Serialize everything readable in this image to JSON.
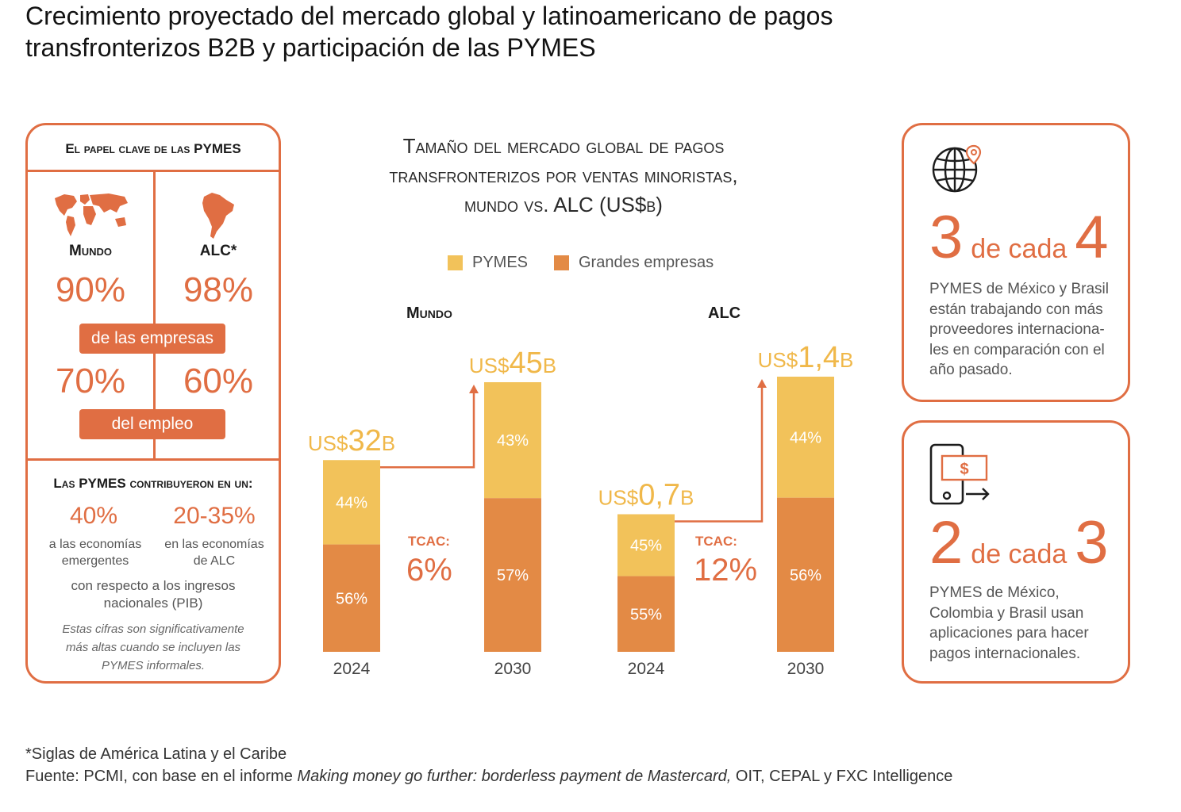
{
  "title_line1": "Crecimiento proyectado del mercado global y latinoamericano de pagos",
  "title_line2": "transfronterizos B2B y participación de las PYMES",
  "left": {
    "header": "El papel clave de las PYMES",
    "world_label": "Mundo",
    "alc_label": "ALC*",
    "world_companies": "90%",
    "alc_companies": "98%",
    "companies_label": "de las empresas",
    "world_employment": "70%",
    "alc_employment": "60%",
    "employment_label": "del empleo",
    "contrib_title": "Las PYMES contribuyeron en un:",
    "c1_pct": "40%",
    "c1_line1": "a las economías",
    "c1_line2": "emergentes",
    "c2_pct": "20-35%",
    "c2_line1": "en las economías",
    "c2_line2": "de ALC",
    "pib_line1": "con respecto a los ingresos",
    "pib_line2": "nacionales (PIB)",
    "note_line1": "Estas cifras son significativamente",
    "note_line2": "más altas cuando se incluyen las",
    "note_line3": "PYMES informales."
  },
  "chart": {
    "title_line1": "Tamaño del mercado global de pagos",
    "title_line2": "transfronterizos por ventas minoristas,",
    "title_line3": "mundo vs. ALC (US$b)",
    "legend_sme": "PYMES",
    "legend_large": "Grandes empresas",
    "region_world": "Mundo",
    "region_alc": "ALC"
  },
  "chart_data": {
    "type": "bar",
    "stacked": true,
    "colors": {
      "PYMES": "#f2c25a",
      "Grandes empresas": "#e38a45"
    },
    "groups": [
      {
        "region": "Mundo",
        "cagr_label": "TCAC:",
        "cagr": "6%",
        "bars": [
          {
            "year": "2024",
            "total": 32,
            "total_prefix": "US$",
            "total_value": "32",
            "total_suffix": "B",
            "pymes_pct": 44,
            "grandes_pct": 56
          },
          {
            "year": "2030",
            "total": 45,
            "total_prefix": "US$",
            "total_value": "45",
            "total_suffix": "B",
            "pymes_pct": 43,
            "grandes_pct": 57
          }
        ]
      },
      {
        "region": "ALC",
        "cagr_label": "TCAC:",
        "cagr": "12%",
        "bars": [
          {
            "year": "2024",
            "total": 0.7,
            "total_prefix": "US$",
            "total_value": "0,7",
            "total_suffix": "B",
            "pymes_pct": 45,
            "grandes_pct": 55
          },
          {
            "year": "2030",
            "total": 1.4,
            "total_prefix": "US$",
            "total_value": "1,4",
            "total_suffix": "B",
            "pymes_pct": 44,
            "grandes_pct": 56
          }
        ]
      }
    ]
  },
  "stat1": {
    "num_a": "3",
    "mid": "de cada",
    "num_b": "4",
    "line1": "PYMES de México y Brasil",
    "line2": "están trabajando con más",
    "line3": "proveedores internaciona-",
    "line4": "les en comparación con el",
    "line5": "año pasado.",
    "icon": "globe-location-icon"
  },
  "stat2": {
    "num_a": "2",
    "mid": "de cada",
    "num_b": "3",
    "line1": "PYMES de México,",
    "line2": "Colombia y Brasil usan",
    "line3": "aplicaciones para hacer",
    "line4": "pagos internacionales.",
    "icon": "phone-payment-icon"
  },
  "footnote1": "*Siglas de América Latina y el Caribe",
  "footnote2_prefix": "Fuente: PCMI, con base en el informe ",
  "footnote2_italic": "Making money go further: borderless payment de Mastercard,",
  "footnote2_suffix": " OIT, CEPAL y FXC Intelligence"
}
